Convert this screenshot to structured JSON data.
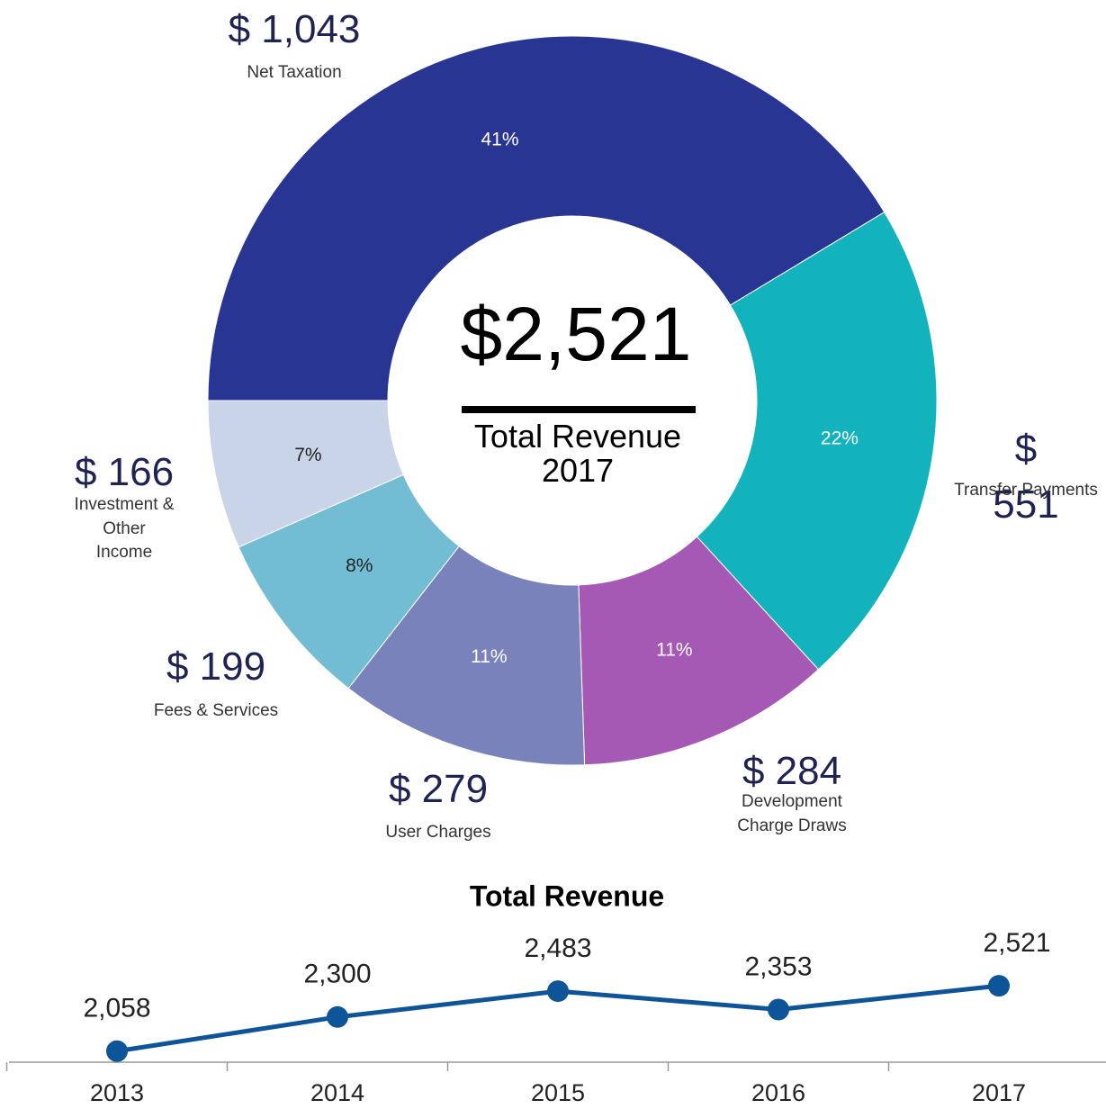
{
  "chart_data": [
    {
      "type": "donut",
      "categories": [
        "Net Taxation",
        "Transfer Payments",
        "Development Charge Draws",
        "User Charges",
        "Fees & Services",
        "Investment & Other Income"
      ],
      "values": [
        1043,
        551,
        284,
        279,
        199,
        166
      ],
      "value_labels": [
        "$ 1,043",
        "$ 551",
        "$ 284",
        "$ 279",
        "$ 199",
        "$ 166"
      ],
      "percent_labels": [
        "41%",
        "22%",
        "11%",
        "11%",
        "8%",
        "7%"
      ],
      "colors": [
        "#283593",
        "#12b3bc",
        "#a659b4",
        "#7a82bb",
        "#72bdd3",
        "#c9d4e8"
      ],
      "percent_label_colors": [
        "#ffffff",
        "#ffffff",
        "#ffffff",
        "#ffffff",
        "#222222",
        "#222222"
      ],
      "center_value": 2521,
      "center_value_label": "$2,521",
      "center_label": "Total Revenue 2017"
    },
    {
      "type": "line",
      "title": "Total Revenue",
      "categories": [
        "2013",
        "2014",
        "2015",
        "2016",
        "2017"
      ],
      "values": [
        2058,
        2300,
        2483,
        2353,
        2521
      ],
      "value_labels": [
        "2,058",
        "2,300",
        "2,483",
        "2,353",
        "2,521"
      ],
      "color": "#0d5499",
      "ylim": [
        1980,
        3000
      ]
    }
  ]
}
